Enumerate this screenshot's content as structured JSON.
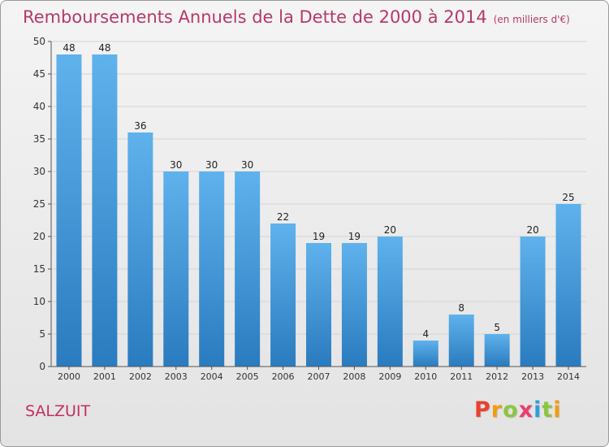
{
  "title": "Remboursements Annuels de la Dette de 2000 à 2014",
  "title_unit": "(en milliers d'€)",
  "commune": "SALZUIT",
  "logo": {
    "text": "Proxiti",
    "letters": [
      {
        "char": "P",
        "color": "#e8422e"
      },
      {
        "char": "r",
        "color": "#f39c12"
      },
      {
        "char": "o",
        "color": "#8cc63f"
      },
      {
        "char": "x",
        "color": "#e83f6f"
      },
      {
        "char": "i",
        "color": "#2e9fd8"
      },
      {
        "char": "t",
        "color": "#8cc63f"
      },
      {
        "char": "i",
        "color": "#f39c12"
      }
    ]
  },
  "colors": {
    "title": "#b5396b",
    "bar_top": "#5fb2ec",
    "bar_bottom": "#2a7bbf",
    "grid": "#d4d4d4",
    "axis": "#555555"
  },
  "chart_data": {
    "type": "bar",
    "categories": [
      "2000",
      "2001",
      "2002",
      "2003",
      "2004",
      "2005",
      "2006",
      "2007",
      "2008",
      "2009",
      "2010",
      "2011",
      "2012",
      "2013",
      "2014"
    ],
    "values": [
      48,
      48,
      36,
      30,
      30,
      30,
      22,
      19,
      19,
      20,
      4,
      8,
      5,
      20,
      25
    ],
    "ylim": [
      0,
      50
    ],
    "yticks": [
      0,
      5,
      10,
      15,
      20,
      25,
      30,
      35,
      40,
      45,
      50
    ],
    "grid": true,
    "data_labels": true
  }
}
